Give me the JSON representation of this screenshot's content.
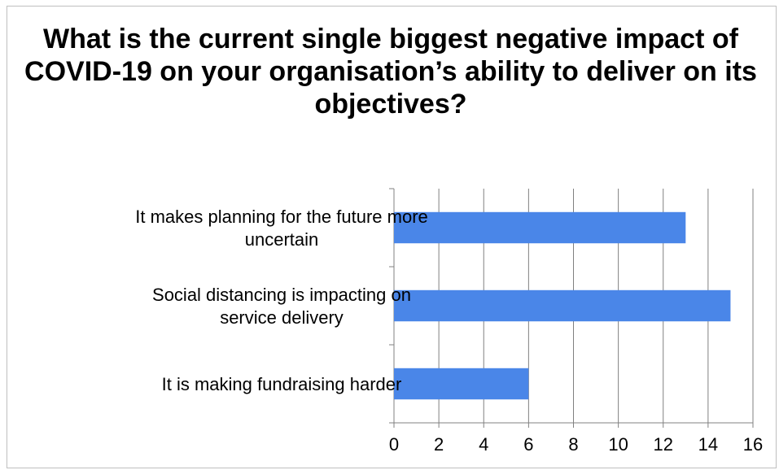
{
  "chart_data": {
    "type": "bar",
    "orientation": "horizontal",
    "title": "What is the current single biggest negative impact of COVID-19 on your organisation’s ability to deliver on its objectives?",
    "categories": [
      [
        "It makes planning for the future more",
        "uncertain"
      ],
      [
        "Social distancing is impacting on",
        "service delivery"
      ],
      [
        "It is making fundraising harder"
      ]
    ],
    "values": [
      13,
      15,
      6
    ],
    "xlim": [
      0,
      16
    ],
    "xticks": [
      "0",
      "2",
      "4",
      "6",
      "8",
      "10",
      "12",
      "14",
      "16"
    ],
    "grid": true,
    "xlabel": "",
    "ylabel": "",
    "bar_color": "#4a86e8",
    "grid_color": "#808080"
  }
}
